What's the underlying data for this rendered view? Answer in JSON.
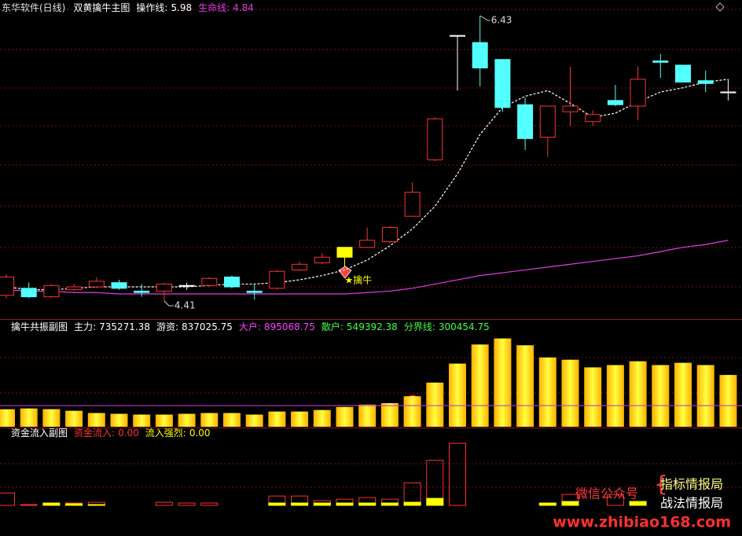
{
  "chart_data": [
    {
      "type": "candlestick",
      "stock": "东华软件(日线)",
      "title": "双黄擒牛主图",
      "open": [
        4.45,
        4.5,
        4.44,
        4.49,
        4.51,
        4.54,
        4.48,
        4.48,
        4.52,
        4.52,
        4.58,
        4.48,
        4.5,
        4.63,
        4.68,
        4.72,
        4.79,
        4.83,
        5.01,
        5.41,
        6.29,
        6.24,
        6.12,
        5.8,
        5.57,
        5.75,
        5.68,
        5.83,
        5.79,
        6.11,
        6.08,
        5.97,
        5.89
      ],
      "high": [
        4.6,
        4.54,
        4.53,
        4.53,
        4.58,
        4.56,
        4.53,
        4.54,
        4.54,
        4.58,
        4.59,
        4.53,
        4.63,
        4.69,
        4.75,
        4.79,
        4.93,
        4.94,
        5.25,
        5.71,
        6.29,
        6.43,
        6.12,
        5.85,
        5.79,
        6.07,
        5.76,
        5.94,
        6.07,
        6.16,
        6.08,
        6.04,
        5.98
      ],
      "low": [
        4.43,
        4.43,
        4.43,
        4.48,
        4.5,
        4.49,
        4.44,
        4.41,
        4.49,
        4.51,
        4.5,
        4.42,
        4.49,
        4.62,
        4.67,
        4.65,
        4.79,
        4.82,
        5.01,
        5.4,
        5.9,
        5.93,
        5.75,
        5.48,
        5.43,
        5.65,
        5.65,
        5.79,
        5.69,
        5.99,
        5.96,
        5.89,
        5.83
      ],
      "close": [
        4.58,
        4.44,
        4.52,
        4.51,
        4.55,
        4.5,
        4.47,
        4.53,
        4.52,
        4.57,
        4.51,
        4.47,
        4.62,
        4.67,
        4.72,
        4.79,
        4.84,
        4.93,
        5.18,
        5.7,
        6.29,
        6.06,
        5.78,
        5.56,
        5.79,
        5.79,
        5.73,
        5.8,
        5.98,
        6.1,
        5.96,
        5.95,
        5.89
      ],
      "up_color": "#ff3232",
      "down_color": "#54ffff",
      "flat_color": "#ffffff",
      "signal_color": "#ffff00",
      "signals": [
        null,
        null,
        null,
        null,
        null,
        null,
        null,
        null,
        null,
        null,
        null,
        null,
        null,
        null,
        null,
        "★擒牛",
        null,
        null,
        null,
        null,
        null,
        null,
        null,
        null,
        null,
        null,
        null,
        null,
        null,
        null,
        null,
        null,
        null
      ],
      "series": [
        {
          "name": "操作线:",
          "color": "#ffffff",
          "values": [
            4.51,
            4.49,
            4.49,
            4.5,
            4.51,
            4.51,
            4.51,
            4.51,
            4.51,
            4.52,
            4.53,
            4.53,
            4.54,
            4.56,
            4.59,
            4.63,
            4.7,
            4.8,
            4.92,
            5.08,
            5.31,
            5.59,
            5.78,
            5.86,
            5.9,
            5.81,
            5.71,
            5.74,
            5.82,
            5.89,
            5.92,
            5.96,
            5.98
          ]
        },
        {
          "name": "生命线:",
          "color": "#e13ee1",
          "values": [
            4.49,
            4.48,
            4.48,
            4.47,
            4.47,
            4.46,
            4.46,
            4.46,
            4.46,
            4.46,
            4.46,
            4.46,
            4.46,
            4.46,
            4.46,
            4.46,
            4.47,
            4.48,
            4.5,
            4.53,
            4.56,
            4.59,
            4.61,
            4.63,
            4.65,
            4.67,
            4.69,
            4.71,
            4.73,
            4.76,
            4.79,
            4.81,
            4.84
          ]
        }
      ]
    },
    {
      "type": "bar",
      "title": "擒牛共振副图",
      "series": [
        {
          "name": "主力:",
          "color": "#ffd700",
          "label_color": "#ffffff",
          "values": [
            249000,
            260000,
            250000,
            227000,
            195000,
            184000,
            173000,
            173000,
            184000,
            195000,
            195000,
            173000,
            216000,
            216000,
            238000,
            281000,
            314000,
            335000,
            433000,
            627000,
            897000,
            1168000,
            1254000,
            1157000,
            984000,
            952000,
            843000,
            876000,
            930000,
            876000,
            908000,
            876000,
            735271.38
          ]
        }
      ],
      "indicators": [
        {
          "name": "游资:",
          "color": "#ffffff",
          "value": 837025.75
        },
        {
          "name": "大户:",
          "color": "#ff40ff",
          "value": 895068.75
        },
        {
          "name": "散户:",
          "color": "#40ff40",
          "value": 549392.38
        },
        {
          "name": "分界线:",
          "color": "#40ff40",
          "value": 300454.75
        }
      ],
      "line_color": "#c040c0"
    },
    {
      "type": "bar",
      "title": "资金流入副图",
      "series": [
        {
          "name": "资金流入:",
          "color": "#ff3232",
          "hollow": true,
          "current": {
            "value": 0,
            "label": "0.00"
          },
          "values": [
            16,
            1,
            2,
            3,
            4,
            0,
            0,
            4,
            3,
            3,
            0,
            0,
            12,
            12,
            6,
            8,
            10,
            8,
            29,
            58,
            80,
            0,
            0,
            0,
            0,
            14,
            0,
            14,
            0,
            0,
            0,
            0,
            0
          ]
        },
        {
          "name": "流入强烈:",
          "color": "#ffff00",
          "hollow": false,
          "current": {
            "value": 0,
            "label": "0.00"
          },
          "values": [
            0,
            0,
            3,
            2,
            1,
            0,
            0,
            0,
            0,
            0,
            0,
            0,
            3,
            3,
            3,
            3,
            3,
            3,
            4,
            9,
            0,
            0,
            0,
            0,
            3,
            5,
            0,
            0,
            5,
            0,
            0,
            0,
            0
          ]
        }
      ]
    }
  ],
  "watermark": {
    "label": "微信公众号",
    "lines": [
      "指标情报局",
      "战法情报局"
    ],
    "url": "www.zhibiao168.com"
  }
}
